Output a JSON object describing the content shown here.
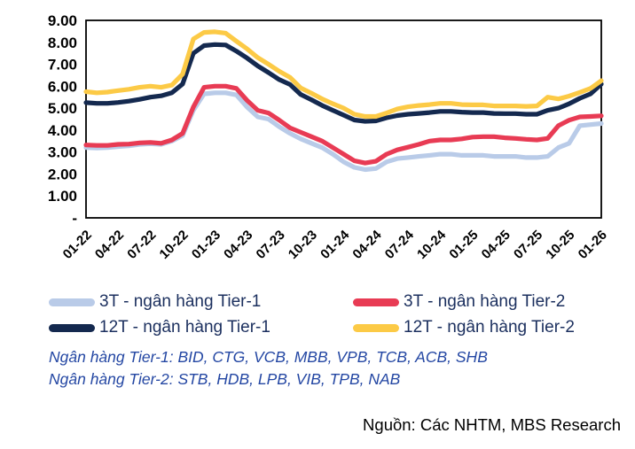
{
  "chart_data": {
    "type": "line",
    "title": "",
    "xlabel": "",
    "ylabel": "",
    "ylim": [
      0,
      9
    ],
    "grid": false,
    "legend_position": "bottom",
    "y_tick_labels": [
      "9.00",
      "8.00",
      "7.00",
      "6.00",
      "5.00",
      "4.00",
      "3.00",
      "2.00",
      "1.00",
      "-"
    ],
    "x_tick_labels": [
      "01-22",
      "04-22",
      "07-22",
      "10-22",
      "01-23",
      "04-23",
      "07-23",
      "10-23",
      "01-24",
      "04-24",
      "07-24",
      "10-24",
      "01-25",
      "04-25",
      "07-25",
      "10-25",
      "01-26"
    ],
    "x_frequency": "monthly, ticks every 3 months",
    "series": [
      {
        "name": "3T - ngân hàng Tier-1",
        "color": "#b9cbe8",
        "values": [
          3.2,
          3.18,
          3.2,
          3.25,
          3.28,
          3.35,
          3.38,
          3.35,
          3.5,
          3.75,
          4.9,
          5.65,
          5.7,
          5.7,
          5.6,
          5.05,
          4.6,
          4.5,
          4.15,
          3.85,
          3.6,
          3.4,
          3.2,
          2.9,
          2.55,
          2.3,
          2.2,
          2.25,
          2.55,
          2.7,
          2.75,
          2.8,
          2.85,
          2.9,
          2.9,
          2.85,
          2.85,
          2.85,
          2.8,
          2.8,
          2.8,
          2.75,
          2.75,
          2.8,
          3.2,
          3.4,
          4.2,
          4.25,
          4.3
        ]
      },
      {
        "name": "3T - ngân hàng Tier-2",
        "color": "#e83b54",
        "values": [
          3.32,
          3.3,
          3.3,
          3.35,
          3.36,
          3.42,
          3.44,
          3.4,
          3.55,
          3.85,
          5.05,
          5.95,
          6.0,
          6.0,
          5.9,
          5.35,
          4.9,
          4.78,
          4.45,
          4.1,
          3.9,
          3.7,
          3.5,
          3.2,
          2.9,
          2.6,
          2.5,
          2.58,
          2.9,
          3.1,
          3.22,
          3.35,
          3.5,
          3.55,
          3.55,
          3.6,
          3.68,
          3.7,
          3.7,
          3.65,
          3.62,
          3.58,
          3.55,
          3.62,
          4.2,
          4.45,
          4.6,
          4.62,
          4.65
        ]
      },
      {
        "name": "12T - ngân hàng Tier-1",
        "color": "#14294f",
        "values": [
          5.25,
          5.22,
          5.22,
          5.26,
          5.32,
          5.4,
          5.5,
          5.56,
          5.7,
          6.1,
          7.5,
          7.85,
          7.9,
          7.88,
          7.6,
          7.28,
          6.92,
          6.62,
          6.3,
          6.08,
          5.62,
          5.38,
          5.12,
          4.9,
          4.68,
          4.46,
          4.4,
          4.42,
          4.56,
          4.66,
          4.72,
          4.76,
          4.8,
          4.85,
          4.85,
          4.82,
          4.8,
          4.8,
          4.76,
          4.75,
          4.75,
          4.72,
          4.72,
          4.9,
          5.0,
          5.2,
          5.45,
          5.65,
          6.1
        ]
      },
      {
        "name": "12T - ngân hàng Tier-2",
        "color": "#fcca46",
        "values": [
          5.75,
          5.7,
          5.73,
          5.8,
          5.86,
          5.95,
          6.0,
          5.95,
          6.05,
          6.55,
          8.15,
          8.45,
          8.48,
          8.42,
          8.05,
          7.7,
          7.3,
          7.0,
          6.68,
          6.4,
          5.92,
          5.68,
          5.42,
          5.2,
          5.0,
          4.72,
          4.62,
          4.62,
          4.78,
          4.96,
          5.06,
          5.12,
          5.16,
          5.22,
          5.22,
          5.16,
          5.15,
          5.15,
          5.1,
          5.1,
          5.1,
          5.08,
          5.1,
          5.5,
          5.42,
          5.55,
          5.72,
          5.9,
          6.25
        ]
      }
    ]
  },
  "legend": {
    "items": [
      {
        "label": "3T - ngân hàng Tier-1",
        "color": "#b9cbe8"
      },
      {
        "label": "3T - ngân hàng Tier-2",
        "color": "#e83b54"
      },
      {
        "label": "12T - ngân hàng Tier-1",
        "color": "#14294f"
      },
      {
        "label": "12T - ngân hàng Tier-2",
        "color": "#fcca46"
      }
    ]
  },
  "footnotes": {
    "tier1": "Ngân hàng Tier-1: BID, CTG, VCB, MBB, VPB, TCB, ACB, SHB",
    "tier2": "Ngân hàng Tier-2: STB, HDB, LPB, VIB, TPB, NAB"
  },
  "source": "Nguồn: Các NHTM, MBS Research"
}
